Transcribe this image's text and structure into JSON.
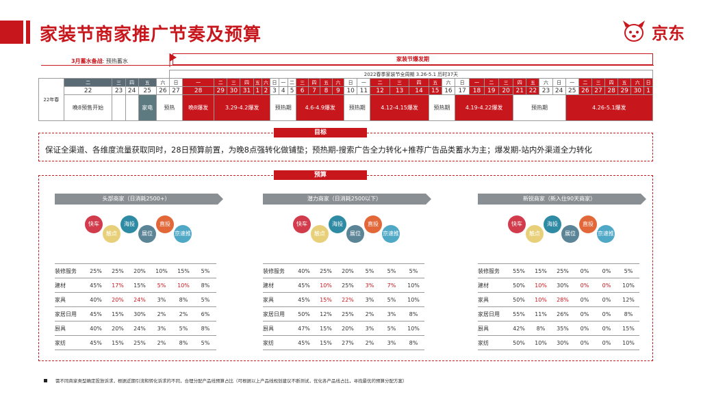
{
  "title": "家装节商家推广节奏及预算",
  "logo_text": "京东",
  "phase": {
    "left_label": "3月蓄水备战",
    "left_desc": "预热蓄水",
    "right_label": "家装节爆发期"
  },
  "calendar": {
    "header": "2022春季家装节全周期 3.26-5.1 历时37天",
    "row_label": "22年春",
    "weekdays": [
      "二",
      "三",
      "四",
      "五",
      "六",
      "日",
      "一",
      "二",
      "三",
      "四",
      "五",
      "六",
      "日",
      "一",
      "二",
      "三",
      "四",
      "五",
      "六",
      "日",
      "一",
      "二",
      "三",
      "四",
      "五",
      "六",
      "日",
      "一",
      "二",
      "三",
      "四",
      "五",
      "六",
      "日",
      "一",
      "二",
      "三",
      "四",
      "五",
      "六",
      "日"
    ],
    "dates": [
      "22",
      "23",
      "24",
      "25",
      "26",
      "27",
      "28",
      "29",
      "30",
      "31",
      "1",
      "2",
      "3",
      "4",
      "5",
      "6",
      "7",
      "8",
      "9",
      "10",
      "11",
      "12",
      "13",
      "14",
      "15",
      "16",
      "17",
      "18",
      "19",
      "20",
      "21",
      "22",
      "23",
      "24",
      "25",
      "26",
      "27",
      "28",
      "29",
      "30",
      "1"
    ],
    "events": [
      "晚8预售开始",
      "",
      "",
      "家电",
      "预热",
      "晚8爆发",
      "3.29-4.2爆发",
      "预热期",
      "4.6-4.9爆发",
      "预热期",
      "4.12-4.15爆发",
      "预热期",
      "4.19-4.22爆发",
      "预热期",
      "4.26-5.1爆发"
    ]
  },
  "goal": {
    "label": "目标",
    "text": "保证全渠道、各维度流量获取同时，28日预算前置，为晚8点强转化做铺垫；预热期-搜索广告全力转化+推荐广告品类蓄水为主；爆发期-站内外渠道全力转化"
  },
  "budget": {
    "label": "预算"
  },
  "panels": [
    {
      "title": "头部商家（日消耗2500+）"
    },
    {
      "title": "潜力商家（日消耗2500以下）"
    },
    {
      "title": "新锐商家（新入住90天商家）"
    }
  ],
  "channels": [
    "快车",
    "触点",
    "海投",
    "展位",
    "直投",
    "京速推"
  ],
  "tables": [
    {
      "rows": [
        {
          "label": "装修服务",
          "values": [
            "25%",
            "25%",
            "20%",
            "10%",
            "15%",
            "5%"
          ],
          "hl": []
        },
        {
          "label": "建材",
          "values": [
            "45%",
            "17%",
            "15%",
            "5%",
            "10%",
            "8%"
          ],
          "hl": [
            1,
            3,
            4
          ]
        },
        {
          "label": "家具",
          "values": [
            "40%",
            "20%",
            "24%",
            "3%",
            "8%",
            "5%"
          ],
          "hl": [
            1,
            2
          ]
        },
        {
          "label": "家居日用",
          "values": [
            "45%",
            "15%",
            "30%",
            "2%",
            "2%",
            "6%"
          ],
          "hl": []
        },
        {
          "label": "厨具",
          "values": [
            "40%",
            "20%",
            "24%",
            "3%",
            "5%",
            "8%"
          ],
          "hl": []
        },
        {
          "label": "家纺",
          "values": [
            "45%",
            "15%",
            "25%",
            "2%",
            "8%",
            "5%"
          ],
          "hl": []
        }
      ]
    },
    {
      "rows": [
        {
          "label": "装修服务",
          "values": [
            "40%",
            "25%",
            "20%",
            "5%",
            "5%",
            "5%"
          ],
          "hl": []
        },
        {
          "label": "建材",
          "values": [
            "45%",
            "10%",
            "25%",
            "3%",
            "7%",
            "10%"
          ],
          "hl": [
            1,
            3,
            4
          ]
        },
        {
          "label": "家具",
          "values": [
            "45%",
            "15%",
            "22%",
            "3%",
            "5%",
            "10%"
          ],
          "hl": [
            1,
            2
          ]
        },
        {
          "label": "家居日用",
          "values": [
            "50%",
            "12%",
            "25%",
            "2%",
            "3%",
            "8%"
          ],
          "hl": []
        },
        {
          "label": "厨具",
          "values": [
            "47%",
            "15%",
            "20%",
            "3%",
            "5%",
            "10%"
          ],
          "hl": []
        },
        {
          "label": "家纺",
          "values": [
            "45%",
            "15%",
            "27%",
            "2%",
            "3%",
            "8%"
          ],
          "hl": []
        }
      ]
    },
    {
      "rows": [
        {
          "label": "装修服务",
          "values": [
            "55%",
            "15%",
            "25%",
            "0%",
            "0%",
            "5%"
          ],
          "hl": []
        },
        {
          "label": "建材",
          "values": [
            "50%",
            "10%",
            "30%",
            "0%",
            "0%",
            "10%"
          ],
          "hl": [
            1,
            3,
            4
          ]
        },
        {
          "label": "家具",
          "values": [
            "50%",
            "10%",
            "28%",
            "0%",
            "0%",
            "12%"
          ],
          "hl": [
            1,
            2
          ]
        },
        {
          "label": "家居日用",
          "values": [
            "55%",
            "11%",
            "26%",
            "0%",
            "0%",
            "8%"
          ],
          "hl": []
        },
        {
          "label": "厨具",
          "values": [
            "42%",
            "8%",
            "35%",
            "0%",
            "0%",
            "15%"
          ],
          "hl": []
        },
        {
          "label": "家纺",
          "values": [
            "50%",
            "10%",
            "30%",
            "0%",
            "0%",
            "10%"
          ],
          "hl": []
        }
      ]
    }
  ],
  "footnote": "需不同商家类型确定投放诉求，根据近期引流和转化诉求的不同，合理分配产品线预算占比（可根据以上产品线规划建议不断测试，优化各产品线占比，寻找最优的预算分配方案）",
  "colors": {
    "brand_red": "#c8161d",
    "gray_header": "#5a6b75"
  }
}
